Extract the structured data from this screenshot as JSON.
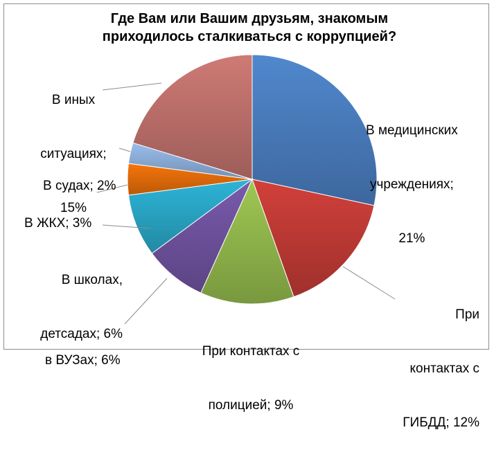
{
  "chart_data": {
    "type": "pie",
    "title_line1": "Где Вам или Вашим друзьям, знакомым",
    "title_line2": "приходилось сталкиваться с коррупцией?",
    "slices": [
      {
        "label_lines": [
          "В медицинских",
          "учреждениях;",
          "21%"
        ],
        "value": 21,
        "color": "#4a7ebf"
      },
      {
        "label_lines": [
          "При",
          "контактах с",
          "ГИБДД; 12%"
        ],
        "value": 12,
        "color": "#c23b36"
      },
      {
        "label_lines": [
          "При контактах с",
          "полицией; 9%"
        ],
        "value": 9,
        "color": "#93b94d"
      },
      {
        "label_lines": [
          "в ВУЗах; 6%"
        ],
        "value": 6,
        "color": "#7053a0"
      },
      {
        "label_lines": [
          "В школах,",
          "детсадах; 6%"
        ],
        "value": 6,
        "color": "#2aa7c7"
      },
      {
        "label_lines": [
          "В ЖКХ; 3%"
        ],
        "value": 3,
        "color": "#e46c0a"
      },
      {
        "label_lines": [
          "В судах; 2%"
        ],
        "value": 2,
        "color": "#8eb0db"
      },
      {
        "label_lines": [
          "В иных",
          "ситуациях;",
          "15%"
        ],
        "value": 15,
        "color": "#c0716c"
      }
    ]
  }
}
